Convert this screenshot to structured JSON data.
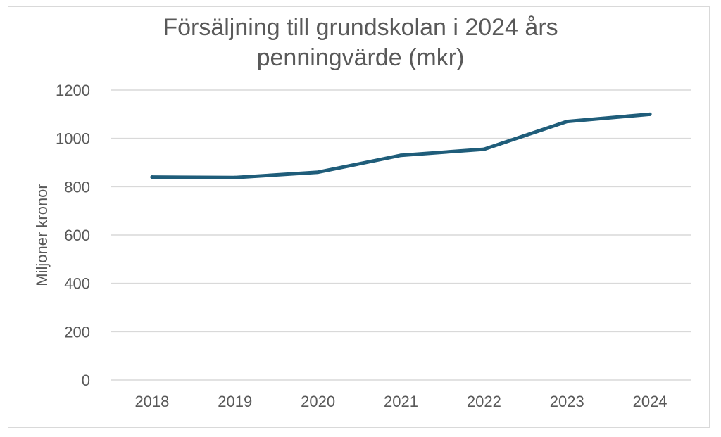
{
  "chart_data": {
    "type": "line",
    "title_lines": [
      "Försäljning till grundskolan i 2024 års",
      "penningvärde (mkr)"
    ],
    "xlabel": "",
    "ylabel": "Miljoner kronor",
    "categories": [
      "2018",
      "2019",
      "2020",
      "2021",
      "2022",
      "2023",
      "2024"
    ],
    "series": [
      {
        "values": [
          840,
          838,
          860,
          930,
          955,
          1070,
          1100
        ]
      }
    ],
    "ylim": [
      0,
      1200
    ],
    "yticks": [
      0,
      200,
      400,
      600,
      800,
      1000,
      1200
    ],
    "grid": true,
    "legend": "none",
    "colors": {
      "line": "#1f5d7a",
      "grid": "#d9d9d9",
      "text": "#595959",
      "border": "#d9d9d9"
    }
  }
}
